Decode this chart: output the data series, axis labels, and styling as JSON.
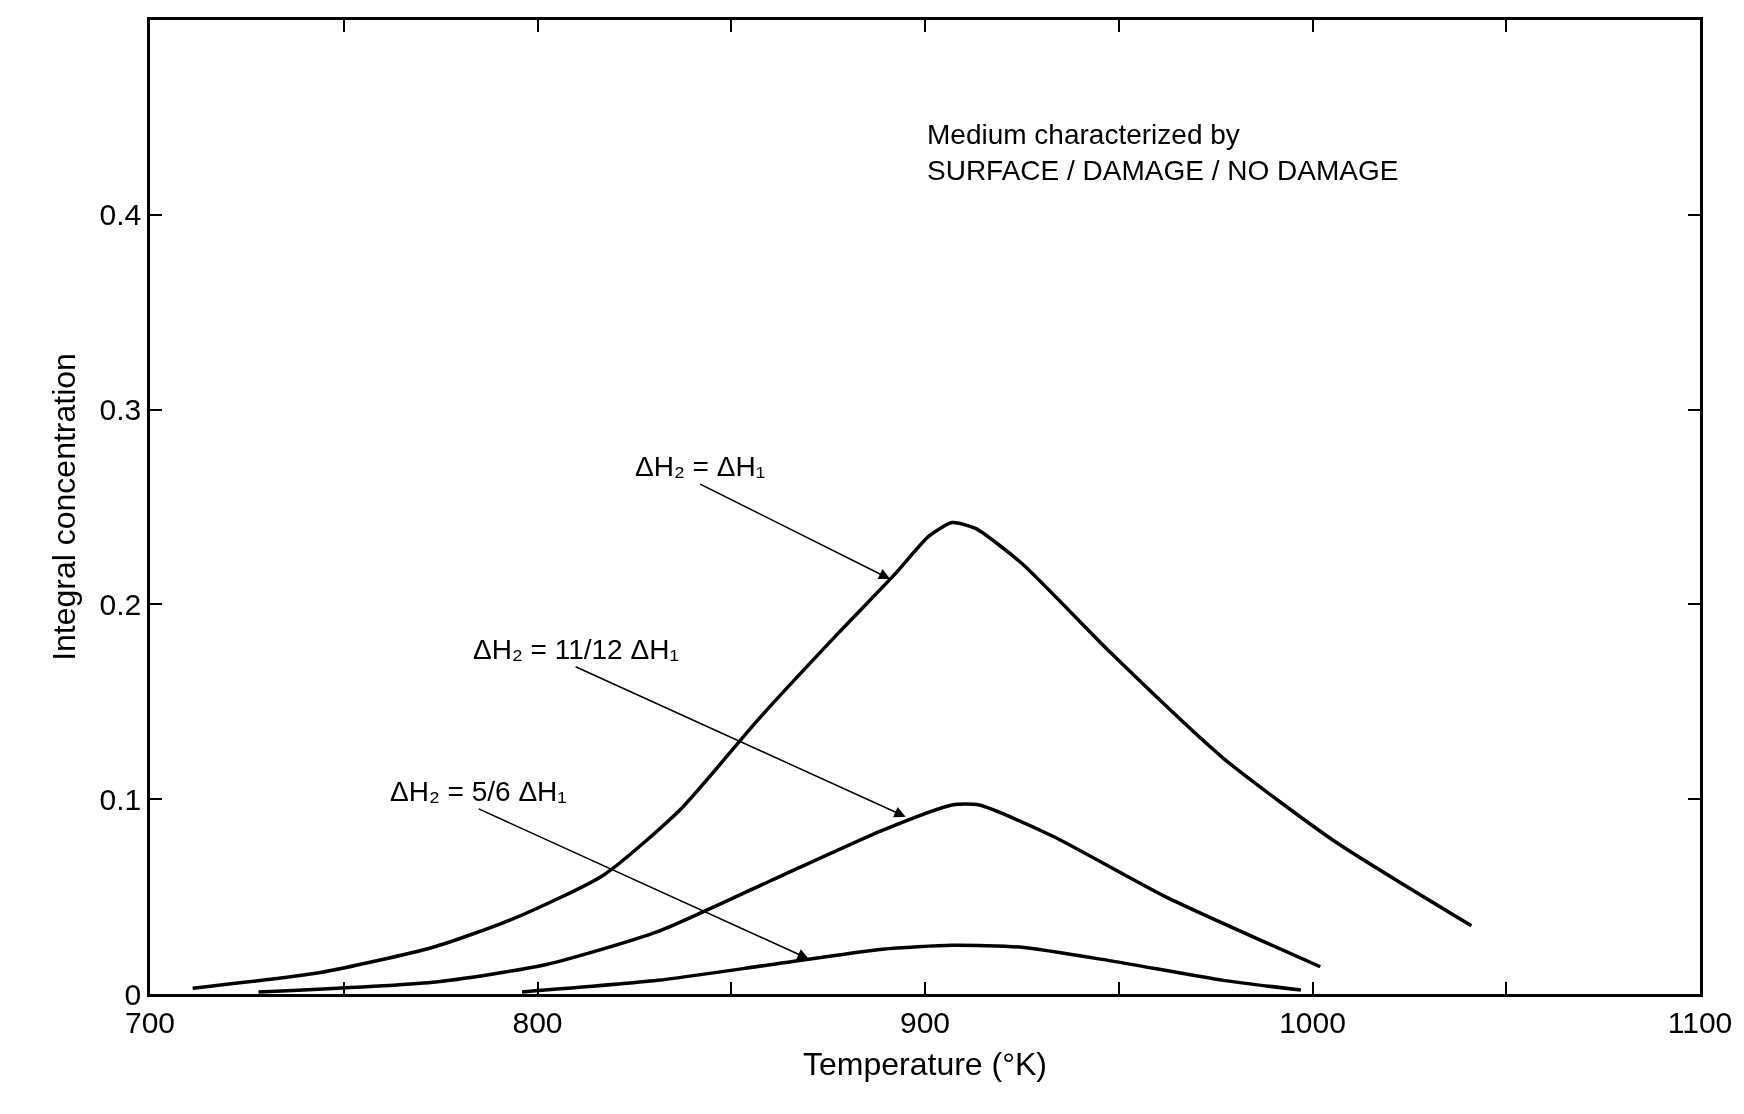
{
  "chart_data": {
    "type": "line",
    "xlabel": "Temperature (°K)",
    "ylabel": "Integral concentration",
    "xlim": [
      700,
      1100
    ],
    "ylim": [
      0,
      0.5
    ],
    "xticks": [
      700,
      {
        "value": 750,
        "label": null
      },
      800,
      {
        "value": 850,
        "label": null
      },
      900,
      {
        "value": 950,
        "label": null
      },
      1000,
      {
        "value": 1050,
        "label": null
      },
      1100
    ],
    "yticks": [
      0,
      0.1,
      0.2,
      0.3,
      0.4
    ],
    "marker": "none",
    "line_style": "solid",
    "series": [
      {
        "color": "#000000",
        "x": [
          711,
          744,
          773,
          793,
          817,
          837,
          857,
          878,
          892,
          901,
          907,
          913,
          925,
          948,
          977,
          1006,
          1041
        ],
        "values": [
          0.003,
          0.011,
          0.024,
          0.038,
          0.061,
          0.095,
          0.141,
          0.186,
          0.215,
          0.235,
          0.242,
          0.239,
          0.221,
          0.175,
          0.121,
          0.078,
          0.035
        ]
      },
      {
        "color": "#000000",
        "x": [
          728,
          773,
          802,
          831,
          860,
          889,
          907,
          914,
          933,
          962,
          1002
        ],
        "values": [
          0.001,
          0.006,
          0.015,
          0.032,
          0.058,
          0.084,
          0.097,
          0.097,
          0.081,
          0.05,
          0.014
        ]
      },
      {
        "color": "#000000",
        "x": [
          796,
          831,
          860,
          889,
          907,
          925,
          948,
          977,
          997
        ],
        "values": [
          0.001,
          0.007,
          0.015,
          0.023,
          0.025,
          0.024,
          0.017,
          0.007,
          0.002
        ]
      }
    ],
    "annotations": [
      {
        "text": "ΔH₂ = ΔH₁",
        "x": 891,
        "y": 0.213
      },
      {
        "text": "ΔH₂ = 11/12 ΔH₁",
        "x": 895,
        "y": 0.091
      },
      {
        "text": "ΔH₂ = 5/6 ΔH₁",
        "x": 870,
        "y": 0.018
      },
      "Medium characterized by\nSURFACE / DAMAGE / NO DAMAGE"
    ]
  }
}
